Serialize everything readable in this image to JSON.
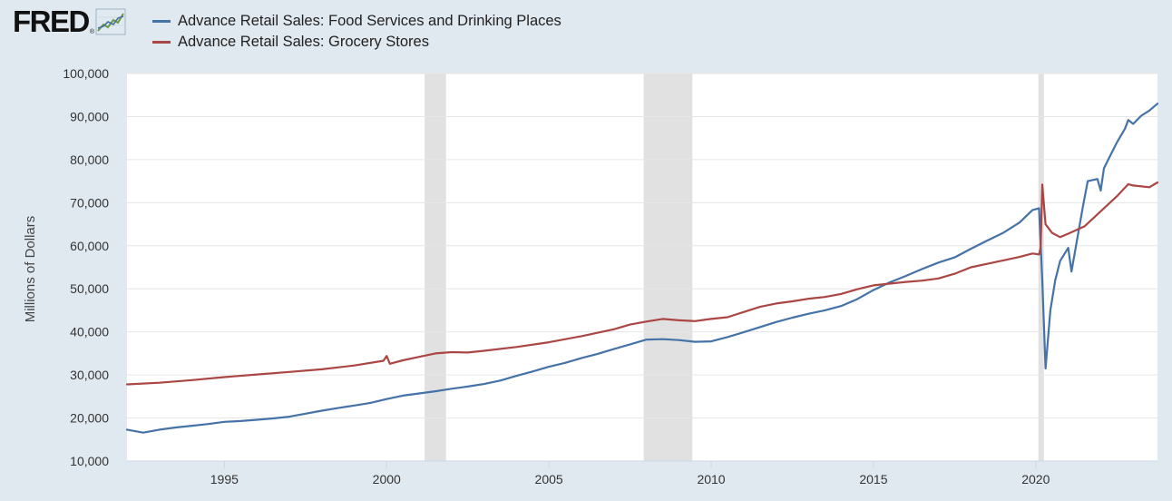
{
  "brand": {
    "name": "FRED",
    "reg_mark": "®",
    "mark_icon": "line-chart-icon"
  },
  "colors": {
    "background": "#e1e9f0",
    "plot_background": "#ffffff",
    "gridline": "#e6e6e6",
    "recession": "#e1e1e1",
    "food_series": "#4572a7",
    "grocery_series": "#aa4643"
  },
  "chart_data": {
    "type": "line",
    "title": "",
    "xlabel": "",
    "ylabel": "Millions of Dollars",
    "xlim": [
      1992.0,
      2023.75
    ],
    "ylim": [
      10000,
      100000
    ],
    "y_ticks": [
      10000,
      20000,
      30000,
      40000,
      50000,
      60000,
      70000,
      80000,
      90000,
      100000
    ],
    "y_tick_labels": [
      "10,000",
      "20,000",
      "30,000",
      "40,000",
      "50,000",
      "60,000",
      "70,000",
      "80,000",
      "90,000",
      "100,000"
    ],
    "x_ticks": [
      1995,
      2000,
      2005,
      2010,
      2015,
      2020
    ],
    "x_tick_labels": [
      "1995",
      "2000",
      "2005",
      "2010",
      "2015",
      "2020"
    ],
    "grid": "horizontal",
    "legend_position": "top-left",
    "recessions": [
      [
        2001.17,
        2001.83
      ],
      [
        2007.92,
        2009.42
      ],
      [
        2020.08,
        2020.25
      ]
    ],
    "series": [
      {
        "name": "Advance Retail Sales: Food Services and Drinking Places",
        "color": "#4572a7",
        "points": [
          [
            1992.0,
            17300
          ],
          [
            1992.5,
            16600
          ],
          [
            1993.0,
            17300
          ],
          [
            1993.5,
            17800
          ],
          [
            1994.0,
            18200
          ],
          [
            1994.5,
            18600
          ],
          [
            1995.0,
            19100
          ],
          [
            1995.5,
            19300
          ],
          [
            1996.0,
            19600
          ],
          [
            1996.5,
            19900
          ],
          [
            1997.0,
            20300
          ],
          [
            1997.5,
            21000
          ],
          [
            1998.0,
            21700
          ],
          [
            1998.5,
            22300
          ],
          [
            1999.0,
            22900
          ],
          [
            1999.5,
            23500
          ],
          [
            2000.0,
            24400
          ],
          [
            2000.5,
            25200
          ],
          [
            2001.0,
            25700
          ],
          [
            2001.5,
            26200
          ],
          [
            2002.0,
            26800
          ],
          [
            2002.5,
            27300
          ],
          [
            2003.0,
            27900
          ],
          [
            2003.5,
            28700
          ],
          [
            2004.0,
            29800
          ],
          [
            2004.5,
            30800
          ],
          [
            2005.0,
            31900
          ],
          [
            2005.5,
            32800
          ],
          [
            2006.0,
            33900
          ],
          [
            2006.5,
            34900
          ],
          [
            2007.0,
            36000
          ],
          [
            2007.5,
            37100
          ],
          [
            2008.0,
            38200
          ],
          [
            2008.5,
            38300
          ],
          [
            2009.0,
            38100
          ],
          [
            2009.5,
            37700
          ],
          [
            2010.0,
            37800
          ],
          [
            2010.5,
            38800
          ],
          [
            2011.0,
            39900
          ],
          [
            2011.5,
            41100
          ],
          [
            2012.0,
            42300
          ],
          [
            2012.5,
            43300
          ],
          [
            2013.0,
            44200
          ],
          [
            2013.5,
            45000
          ],
          [
            2014.0,
            46000
          ],
          [
            2014.5,
            47600
          ],
          [
            2015.0,
            49700
          ],
          [
            2015.5,
            51500
          ],
          [
            2016.0,
            53000
          ],
          [
            2016.5,
            54600
          ],
          [
            2017.0,
            56100
          ],
          [
            2017.5,
            57300
          ],
          [
            2018.0,
            59300
          ],
          [
            2018.5,
            61200
          ],
          [
            2019.0,
            63000
          ],
          [
            2019.5,
            65400
          ],
          [
            2019.9,
            68300
          ],
          [
            2020.1,
            68700
          ],
          [
            2020.2,
            52000
          ],
          [
            2020.3,
            31500
          ],
          [
            2020.45,
            45000
          ],
          [
            2020.6,
            52000
          ],
          [
            2020.75,
            56500
          ],
          [
            2021.0,
            59500
          ],
          [
            2021.1,
            54000
          ],
          [
            2021.25,
            60500
          ],
          [
            2021.45,
            69000
          ],
          [
            2021.6,
            75000
          ],
          [
            2021.9,
            75500
          ],
          [
            2022.0,
            72800
          ],
          [
            2022.1,
            78000
          ],
          [
            2022.3,
            81000
          ],
          [
            2022.5,
            84000
          ],
          [
            2022.75,
            87200
          ],
          [
            2022.85,
            89200
          ],
          [
            2023.0,
            88300
          ],
          [
            2023.25,
            90200
          ],
          [
            2023.5,
            91400
          ],
          [
            2023.75,
            93000
          ]
        ]
      },
      {
        "name": "Advance Retail Sales: Grocery Stores",
        "color": "#aa4643",
        "points": [
          [
            1992.0,
            27800
          ],
          [
            1993.0,
            28200
          ],
          [
            1994.0,
            28800
          ],
          [
            1995.0,
            29500
          ],
          [
            1996.0,
            30100
          ],
          [
            1997.0,
            30700
          ],
          [
            1998.0,
            31300
          ],
          [
            1999.0,
            32200
          ],
          [
            1999.9,
            33300
          ],
          [
            2000.0,
            34400
          ],
          [
            2000.1,
            32600
          ],
          [
            2000.5,
            33400
          ],
          [
            2001.0,
            34200
          ],
          [
            2001.5,
            35000
          ],
          [
            2002.0,
            35300
          ],
          [
            2002.5,
            35200
          ],
          [
            2003.0,
            35600
          ],
          [
            2004.0,
            36500
          ],
          [
            2005.0,
            37600
          ],
          [
            2006.0,
            39000
          ],
          [
            2007.0,
            40600
          ],
          [
            2007.5,
            41700
          ],
          [
            2008.0,
            42400
          ],
          [
            2008.5,
            43000
          ],
          [
            2009.0,
            42700
          ],
          [
            2009.5,
            42500
          ],
          [
            2010.0,
            43000
          ],
          [
            2010.5,
            43400
          ],
          [
            2011.0,
            44600
          ],
          [
            2011.5,
            45800
          ],
          [
            2012.0,
            46600
          ],
          [
            2012.5,
            47100
          ],
          [
            2013.0,
            47700
          ],
          [
            2013.5,
            48100
          ],
          [
            2014.0,
            48800
          ],
          [
            2014.5,
            49900
          ],
          [
            2015.0,
            50800
          ],
          [
            2015.5,
            51200
          ],
          [
            2016.0,
            51600
          ],
          [
            2016.5,
            51900
          ],
          [
            2017.0,
            52400
          ],
          [
            2017.5,
            53500
          ],
          [
            2018.0,
            55000
          ],
          [
            2018.5,
            55800
          ],
          [
            2019.0,
            56600
          ],
          [
            2019.5,
            57400
          ],
          [
            2019.9,
            58200
          ],
          [
            2020.1,
            58000
          ],
          [
            2020.15,
            59500
          ],
          [
            2020.2,
            74200
          ],
          [
            2020.3,
            65000
          ],
          [
            2020.5,
            63000
          ],
          [
            2020.75,
            62000
          ],
          [
            2021.0,
            62800
          ],
          [
            2021.5,
            64500
          ],
          [
            2022.0,
            68000
          ],
          [
            2022.5,
            71500
          ],
          [
            2022.85,
            74300
          ],
          [
            2023.0,
            74000
          ],
          [
            2023.5,
            73600
          ],
          [
            2023.75,
            74700
          ]
        ]
      }
    ]
  }
}
